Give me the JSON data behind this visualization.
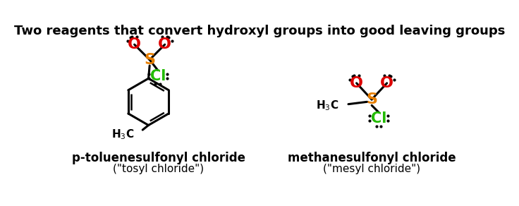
{
  "title": "Two reagents that convert hydroxyl groups into good leaving groups",
  "title_fontsize": 13,
  "title_fontweight": "bold",
  "bg_color": "#ffffff",
  "label1": "p-toluenesulfonyl chloride",
  "label1_sub": "(\"tosyl chloride\")",
  "label2": "methanesulfonyl chloride",
  "label2_sub": "(\"mesyl chloride\")",
  "color_S": "#e67e00",
  "color_O": "#dd0000",
  "color_Cl": "#22bb00",
  "color_black": "#000000",
  "label_fontsize": 12,
  "sublabel_fontsize": 11
}
